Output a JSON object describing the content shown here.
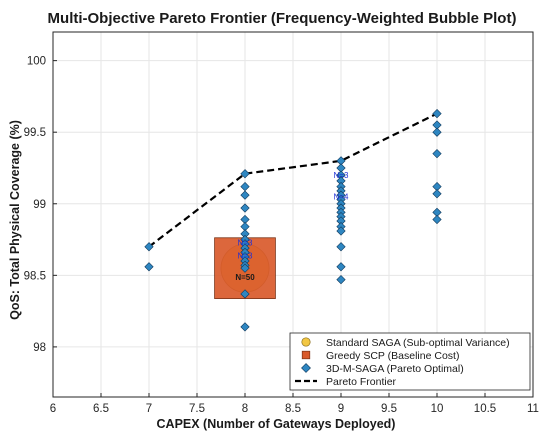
{
  "chart_data": {
    "type": "scatter",
    "title": "Multi-Objective Pareto Frontier (Frequency-Weighted Bubble Plot)",
    "xlabel": "CAPEX (Number of Gateways Deployed)",
    "ylabel": "QoS: Total Physical Coverage (%)",
    "xlim": [
      6,
      11
    ],
    "ylim": [
      97.65,
      100.2
    ],
    "xticks": [
      6,
      6.5,
      7,
      7.5,
      8,
      8.5,
      9,
      9.5,
      10,
      10.5,
      11
    ],
    "yticks": [
      98,
      98.5,
      99,
      99.5,
      100
    ],
    "xtick_labels": [
      "6",
      "6.5",
      "7",
      "7.5",
      "8",
      "8.5",
      "9",
      "9.5",
      "10",
      "10.5",
      "11"
    ],
    "ytick_labels": [
      "98",
      "98.5",
      "99",
      "99.5",
      "100"
    ],
    "grid": true,
    "legend_position": "bottom-right",
    "colors": {
      "standard_saga": "#f2c744",
      "greedy_scp": "#d95a2b",
      "pareto_optimal": "#2e86c1",
      "frontier": "#000000",
      "count_text": "#1f2fd6"
    },
    "series": [
      {
        "name": "Standard SAGA (Sub-optimal Variance)",
        "marker": "circle",
        "points": [
          {
            "x": 8,
            "y": 98.55,
            "count": 50
          }
        ]
      },
      {
        "name": "Greedy SCP (Baseline Cost)",
        "marker": "square",
        "points": [
          {
            "x": 8,
            "y": 98.55,
            "count": 50
          }
        ]
      },
      {
        "name": "3D-M-SAGA (Pareto Optimal)",
        "marker": "diamond",
        "points": [
          {
            "x": 7,
            "y": 98.7
          },
          {
            "x": 7,
            "y": 98.56
          },
          {
            "x": 8,
            "y": 99.21
          },
          {
            "x": 8,
            "y": 99.12
          },
          {
            "x": 8,
            "y": 99.06
          },
          {
            "x": 8,
            "y": 98.97
          },
          {
            "x": 8,
            "y": 98.89
          },
          {
            "x": 8,
            "y": 98.84
          },
          {
            "x": 8,
            "y": 98.79
          },
          {
            "x": 8,
            "y": 98.75
          },
          {
            "x": 8,
            "y": 98.72
          },
          {
            "x": 8,
            "y": 98.69
          },
          {
            "x": 8,
            "y": 98.66
          },
          {
            "x": 8,
            "y": 98.63
          },
          {
            "x": 8,
            "y": 98.6
          },
          {
            "x": 8,
            "y": 98.57
          },
          {
            "x": 8,
            "y": 98.55
          },
          {
            "x": 8,
            "y": 98.37
          },
          {
            "x": 8,
            "y": 98.14
          },
          {
            "x": 9,
            "y": 99.3
          },
          {
            "x": 9,
            "y": 99.25
          },
          {
            "x": 9,
            "y": 99.2
          },
          {
            "x": 9,
            "y": 99.16
          },
          {
            "x": 9,
            "y": 99.12
          },
          {
            "x": 9,
            "y": 99.09
          },
          {
            "x": 9,
            "y": 99.06
          },
          {
            "x": 9,
            "y": 99.03
          },
          {
            "x": 9,
            "y": 99.0
          },
          {
            "x": 9,
            "y": 98.97
          },
          {
            "x": 9,
            "y": 98.94
          },
          {
            "x": 9,
            "y": 98.91
          },
          {
            "x": 9,
            "y": 98.88
          },
          {
            "x": 9,
            "y": 98.84
          },
          {
            "x": 9,
            "y": 98.81
          },
          {
            "x": 9,
            "y": 98.7
          },
          {
            "x": 9,
            "y": 98.56
          },
          {
            "x": 9,
            "y": 98.47
          },
          {
            "x": 10,
            "y": 99.63
          },
          {
            "x": 10,
            "y": 99.55
          },
          {
            "x": 10,
            "y": 99.5
          },
          {
            "x": 10,
            "y": 99.35
          },
          {
            "x": 10,
            "y": 99.12
          },
          {
            "x": 10,
            "y": 99.07
          },
          {
            "x": 10,
            "y": 98.94
          },
          {
            "x": 10,
            "y": 98.89
          }
        ]
      },
      {
        "name": "Pareto Frontier",
        "marker": "dashed-line",
        "points": [
          {
            "x": 7,
            "y": 98.7
          },
          {
            "x": 8,
            "y": 99.21
          },
          {
            "x": 9,
            "y": 99.3
          },
          {
            "x": 10,
            "y": 99.63
          }
        ]
      }
    ],
    "annotations": [
      {
        "x": 8,
        "y": 98.73,
        "text": "N=3",
        "color": "#1f2fd6"
      },
      {
        "x": 8,
        "y": 98.64,
        "text": "N=3",
        "color": "#1f2fd6"
      },
      {
        "x": 8,
        "y": 98.49,
        "text": "N=50",
        "color": "#1a1a1a"
      },
      {
        "x": 9,
        "y": 99.2,
        "text": "N=3",
        "color": "#1f2fd6"
      },
      {
        "x": 9,
        "y": 99.05,
        "text": "N=4",
        "color": "#1f2fd6"
      }
    ]
  }
}
